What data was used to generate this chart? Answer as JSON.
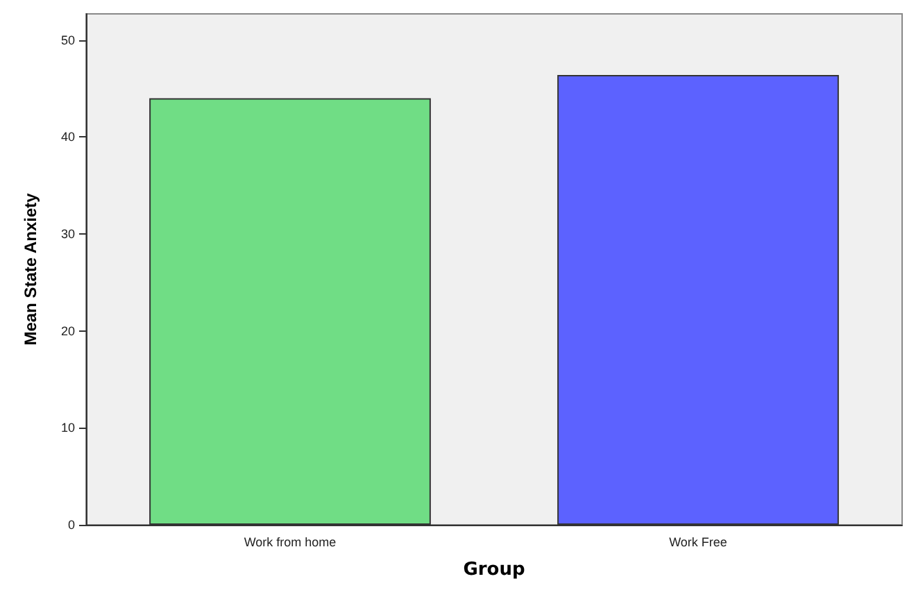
{
  "chart_data": {
    "type": "bar",
    "xlabel": "Group",
    "ylabel": "Mean State Anxiety",
    "categories": [
      "Work from home",
      "Work Free"
    ],
    "values": [
      44.0,
      46.4
    ],
    "colors": [
      "#70dd85",
      "#5c62ff"
    ],
    "ylim": [
      0,
      52.7
    ],
    "yticks": [
      0,
      10,
      20,
      30,
      40,
      50
    ],
    "grid": false
  }
}
